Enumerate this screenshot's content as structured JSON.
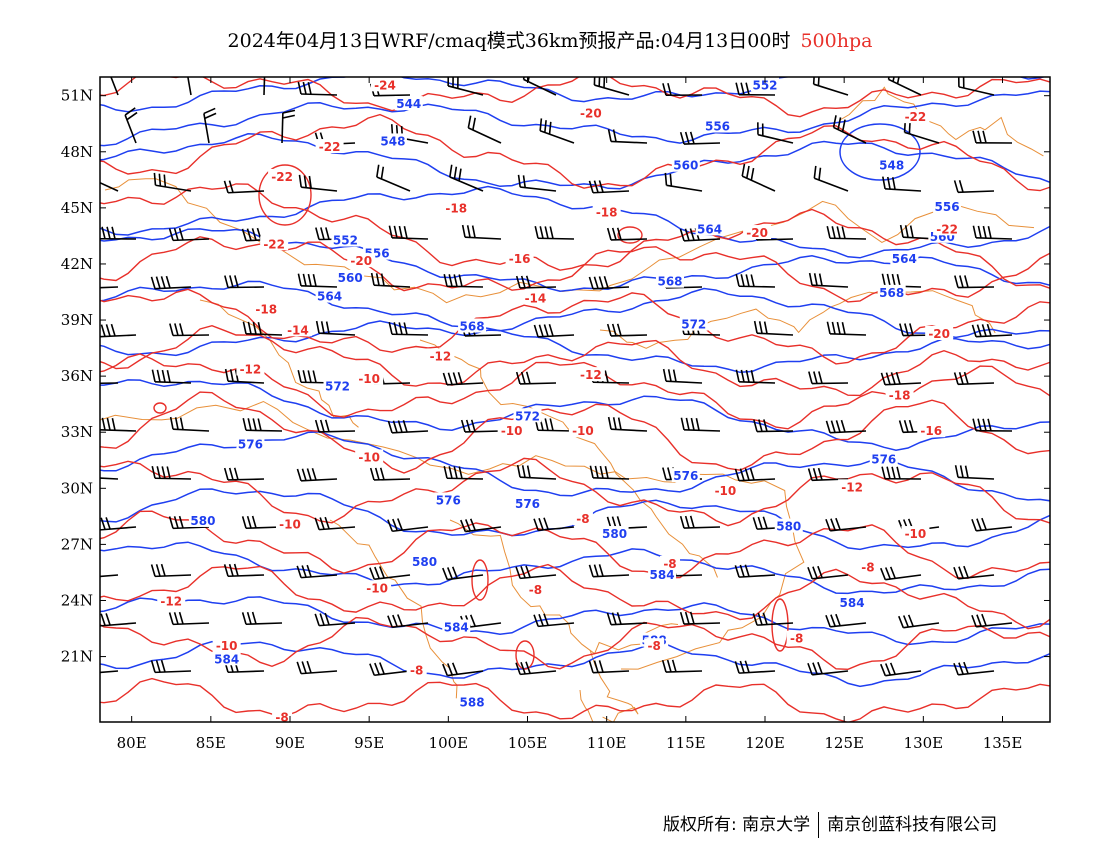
{
  "title": {
    "main": "2024年04月13日WRF/cmaq模式36km预报产品:04月13日00时",
    "level": "500hpa",
    "level_color": "#e8302a"
  },
  "map": {
    "lon_range": [
      78,
      138
    ],
    "lat_range": [
      17.5,
      52
    ],
    "lon_ticks": [
      "80E",
      "85E",
      "90E",
      "95E",
      "100E",
      "105E",
      "110E",
      "115E",
      "120E",
      "125E",
      "130E",
      "135E"
    ],
    "lat_ticks": [
      "51N",
      "48N",
      "45N",
      "42N",
      "39N",
      "36N",
      "33N",
      "30N",
      "27N",
      "24N",
      "21N"
    ],
    "colors": {
      "geopotential_height": "#1f3ff0",
      "temperature": "#e8302a",
      "boundaries": "#e8903a",
      "wind_barbs": "#000000"
    },
    "geopotential_height_labels": [
      {
        "text": "544",
        "lon": 97.5,
        "lat": 50.5
      },
      {
        "text": "548",
        "lon": 96.5,
        "lat": 48.5
      },
      {
        "text": "552",
        "lon": 120.0,
        "lat": 51.5
      },
      {
        "text": "556",
        "lon": 117.0,
        "lat": 49.3
      },
      {
        "text": "560",
        "lon": 115.0,
        "lat": 47.2
      },
      {
        "text": "548",
        "lon": 128.0,
        "lat": 47.2
      },
      {
        "text": "552",
        "lon": 93.5,
        "lat": 43.2
      },
      {
        "text": "556",
        "lon": 95.5,
        "lat": 42.5
      },
      {
        "text": "560",
        "lon": 93.8,
        "lat": 41.2
      },
      {
        "text": "564",
        "lon": 92.5,
        "lat": 40.2
      },
      {
        "text": "568",
        "lon": 101.5,
        "lat": 38.6
      },
      {
        "text": "564",
        "lon": 116.5,
        "lat": 43.8
      },
      {
        "text": "568",
        "lon": 114.0,
        "lat": 41.0
      },
      {
        "text": "572",
        "lon": 115.5,
        "lat": 38.7
      },
      {
        "text": "556",
        "lon": 131.5,
        "lat": 45.0
      },
      {
        "text": "560",
        "lon": 131.2,
        "lat": 43.4
      },
      {
        "text": "564",
        "lon": 128.8,
        "lat": 42.2
      },
      {
        "text": "568",
        "lon": 128.0,
        "lat": 40.4
      },
      {
        "text": "572",
        "lon": 93.0,
        "lat": 35.4
      },
      {
        "text": "572",
        "lon": 105.0,
        "lat": 33.8
      },
      {
        "text": "576",
        "lon": 87.5,
        "lat": 32.3
      },
      {
        "text": "576",
        "lon": 100.0,
        "lat": 29.3
      },
      {
        "text": "576",
        "lon": 105.0,
        "lat": 29.1
      },
      {
        "text": "576",
        "lon": 115.0,
        "lat": 30.6
      },
      {
        "text": "576",
        "lon": 127.5,
        "lat": 31.5
      },
      {
        "text": "580",
        "lon": 84.5,
        "lat": 28.2
      },
      {
        "text": "580",
        "lon": 110.5,
        "lat": 27.5
      },
      {
        "text": "580",
        "lon": 121.5,
        "lat": 27.9
      },
      {
        "text": "580",
        "lon": 98.5,
        "lat": 26.0
      },
      {
        "text": "584",
        "lon": 113.5,
        "lat": 25.3
      },
      {
        "text": "584",
        "lon": 125.5,
        "lat": 23.8
      },
      {
        "text": "584",
        "lon": 100.5,
        "lat": 22.5
      },
      {
        "text": "584",
        "lon": 86.0,
        "lat": 20.8
      },
      {
        "text": "588",
        "lon": 113.0,
        "lat": 21.8
      },
      {
        "text": "588",
        "lon": 101.5,
        "lat": 18.5
      }
    ],
    "temperature_labels": [
      {
        "text": "-24",
        "lon": 96.0,
        "lat": 51.5
      },
      {
        "text": "-22",
        "lon": 92.5,
        "lat": 48.2
      },
      {
        "text": "-22",
        "lon": 89.5,
        "lat": 46.6
      },
      {
        "text": "-22",
        "lon": 89.0,
        "lat": 43.0
      },
      {
        "text": "-22",
        "lon": 129.5,
        "lat": 49.8
      },
      {
        "text": "-22",
        "lon": 131.5,
        "lat": 43.8
      },
      {
        "text": "-20",
        "lon": 109.0,
        "lat": 50.0
      },
      {
        "text": "-20",
        "lon": 94.5,
        "lat": 42.1
      },
      {
        "text": "-20",
        "lon": 119.5,
        "lat": 43.6
      },
      {
        "text": "-18",
        "lon": 100.5,
        "lat": 44.9
      },
      {
        "text": "-18",
        "lon": 110.0,
        "lat": 44.7
      },
      {
        "text": "-18",
        "lon": 88.5,
        "lat": 39.5
      },
      {
        "text": "-18",
        "lon": 128.5,
        "lat": 34.9
      },
      {
        "text": "-16",
        "lon": 104.5,
        "lat": 42.2
      },
      {
        "text": "-16",
        "lon": 130.5,
        "lat": 33.0
      },
      {
        "text": "-14",
        "lon": 105.5,
        "lat": 40.1
      },
      {
        "text": "-14",
        "lon": 90.5,
        "lat": 38.4
      },
      {
        "text": "-20",
        "lon": 131.0,
        "lat": 38.2
      },
      {
        "text": "-12",
        "lon": 87.5,
        "lat": 36.3
      },
      {
        "text": "-12",
        "lon": 99.5,
        "lat": 37.0
      },
      {
        "text": "-12",
        "lon": 109.0,
        "lat": 36.0
      },
      {
        "text": "-12",
        "lon": 125.5,
        "lat": 30.0
      },
      {
        "text": "-10",
        "lon": 95.0,
        "lat": 35.8
      },
      {
        "text": "-10",
        "lon": 104.0,
        "lat": 33.0
      },
      {
        "text": "-10",
        "lon": 108.5,
        "lat": 33.0
      },
      {
        "text": "-10",
        "lon": 95.0,
        "lat": 31.6
      },
      {
        "text": "-10",
        "lon": 117.5,
        "lat": 29.8
      },
      {
        "text": "-10",
        "lon": 90.0,
        "lat": 28.0
      },
      {
        "text": "-10",
        "lon": 129.5,
        "lat": 27.5
      },
      {
        "text": "-10",
        "lon": 95.5,
        "lat": 24.6
      },
      {
        "text": "-10",
        "lon": 86.0,
        "lat": 21.5
      },
      {
        "text": "-12",
        "lon": 82.5,
        "lat": 23.9
      },
      {
        "text": "-8",
        "lon": 108.5,
        "lat": 28.3
      },
      {
        "text": "-8",
        "lon": 114.0,
        "lat": 25.9
      },
      {
        "text": "-8",
        "lon": 126.5,
        "lat": 25.7
      },
      {
        "text": "-8",
        "lon": 122.0,
        "lat": 21.9
      },
      {
        "text": "-8",
        "lon": 105.5,
        "lat": 24.5
      },
      {
        "text": "-8",
        "lon": 113.0,
        "lat": 21.5
      },
      {
        "text": "-8",
        "lon": 98.0,
        "lat": 20.2
      },
      {
        "text": "-8",
        "lon": 89.5,
        "lat": 17.7
      }
    ]
  },
  "footer": {
    "copyright": "版权所有: 南京大学",
    "company": "南京创蓝科技有限公司"
  }
}
